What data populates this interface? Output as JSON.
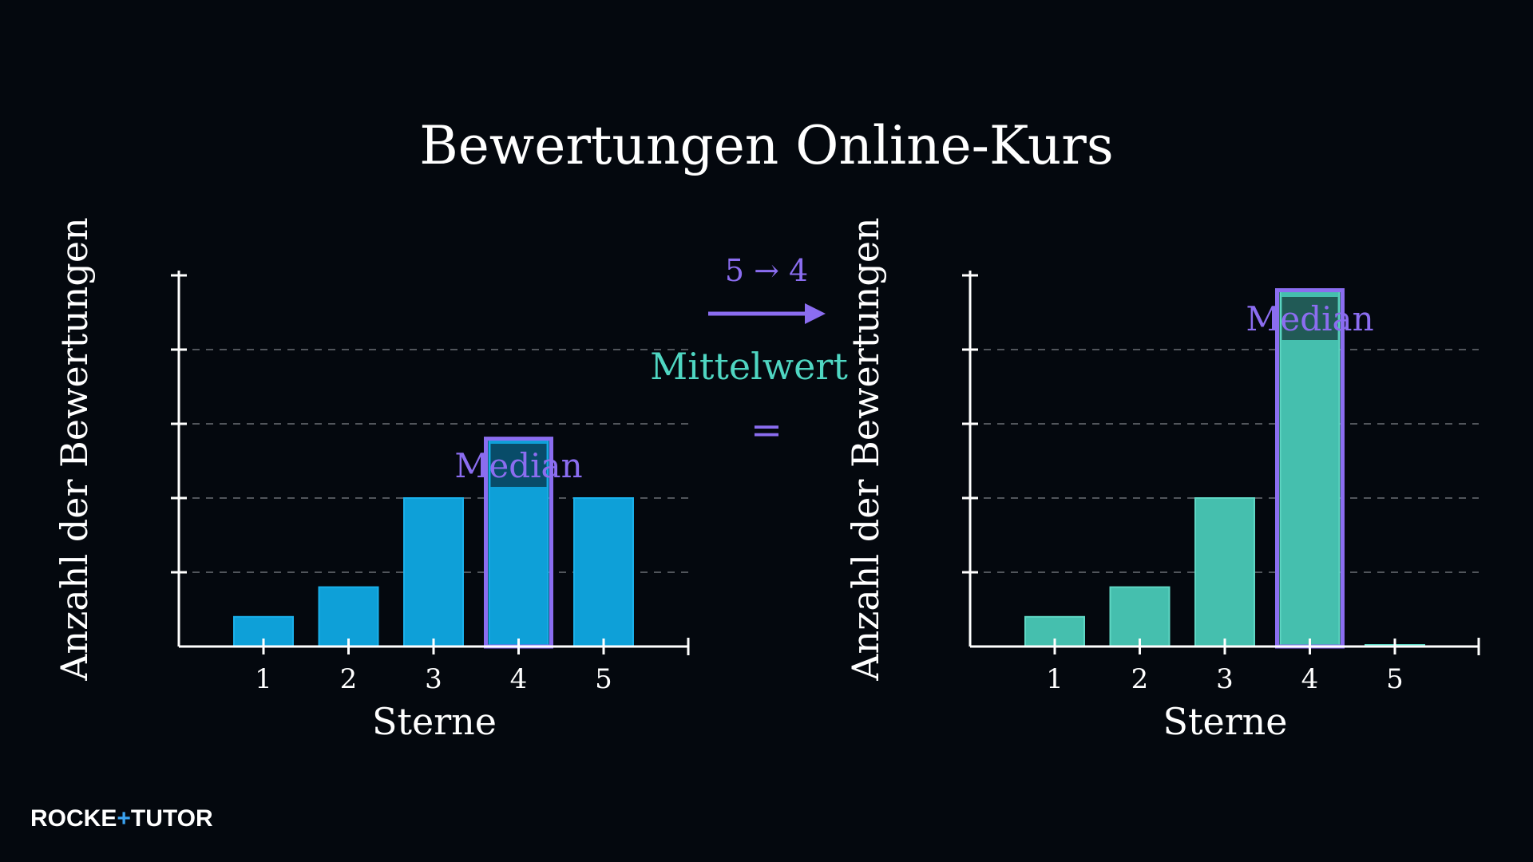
{
  "title": "Bewertungen Online-Kurs",
  "colors": {
    "background": "#04080e",
    "bar_left": "#0ea0d8",
    "bar_right": "#45bfae",
    "median": "#8b6df0",
    "mittelwert": "#4fd6c2",
    "axis": "#ffffff",
    "grid": "#6b6f75"
  },
  "annotation": {
    "change": "5 → 4",
    "mittelwert": "Mittelwert",
    "equals": "="
  },
  "logo": {
    "part1": "ROCKE",
    "plus": "+",
    "part2": "TUTOR"
  },
  "chart_data": [
    {
      "type": "bar",
      "categories": [
        "1",
        "2",
        "3",
        "4",
        "5"
      ],
      "values": [
        0.4,
        0.8,
        2,
        2.8,
        2
      ],
      "xlabel": "Sterne",
      "ylabel": "Anzahl der Bewertungen",
      "ylim": [
        0,
        5
      ],
      "grid": "horizontal-dashed",
      "highlight": {
        "category": "4",
        "label": "Median"
      }
    },
    {
      "type": "bar",
      "categories": [
        "1",
        "2",
        "3",
        "4",
        "5"
      ],
      "values": [
        0.4,
        0.8,
        2,
        4.8,
        0
      ],
      "xlabel": "Sterne",
      "ylabel": "Anzahl der Bewertungen",
      "ylim": [
        0,
        5
      ],
      "grid": "horizontal-dashed",
      "highlight": {
        "category": "4",
        "label": "Median"
      }
    }
  ]
}
